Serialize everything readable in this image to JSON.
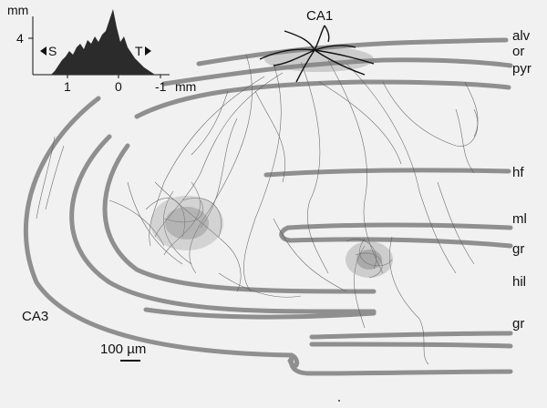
{
  "labels": {
    "region_top": "CA1",
    "region_left": "CA3",
    "layers": [
      "alv",
      "or",
      "pyr",
      "hf",
      "ml",
      "gr",
      "hil",
      "gr"
    ],
    "scale_bar": "100 µm"
  },
  "inset": {
    "y_unit": "mm",
    "y_tick": "4",
    "x_ticks": [
      "1",
      "0",
      "-1"
    ],
    "x_unit": "mm",
    "left_dir": "S",
    "right_dir": "T"
  },
  "colors": {
    "background": "#f1f1f1",
    "layer_band": "#8f8f8f",
    "axon": "#555555",
    "histogram": "#2b2b2b"
  }
}
